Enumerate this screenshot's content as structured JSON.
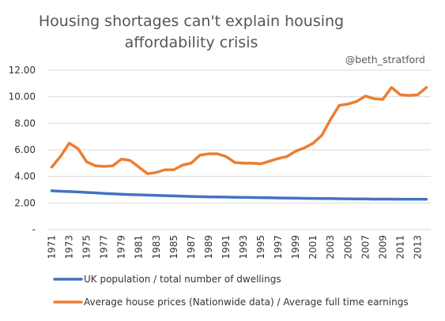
{
  "chart_data": {
    "type": "line",
    "title": "Housing shortages can't explain housing affordability crisis",
    "title_lines": [
      "Housing shortages can't explain housing",
      "affordability crisis"
    ],
    "annotation": "@beth_stratford",
    "ylim": [
      0,
      12
    ],
    "y_ticks": [
      "-",
      "2.00",
      "4.00",
      "6.00",
      "8.00",
      "10.00",
      "12.00"
    ],
    "x_ticks": [
      "1971",
      "1973",
      "1975",
      "1977",
      "1979",
      "1981",
      "1983",
      "1985",
      "1987",
      "1989",
      "1991",
      "1993",
      "1995",
      "1997",
      "1999",
      "2001",
      "2003",
      "2005",
      "2007",
      "2009",
      "2011",
      "2013"
    ],
    "x": [
      1971,
      1972,
      1973,
      1974,
      1975,
      1976,
      1977,
      1978,
      1979,
      1980,
      1981,
      1982,
      1983,
      1984,
      1985,
      1986,
      1987,
      1988,
      1989,
      1990,
      1991,
      1992,
      1993,
      1994,
      1995,
      1996,
      1997,
      1998,
      1999,
      2000,
      2001,
      2002,
      2003,
      2004,
      2005,
      2006,
      2007,
      2008,
      2009,
      2010,
      2011,
      2012,
      2013,
      2014
    ],
    "grid": true,
    "legend_position": "bottom",
    "series": [
      {
        "name": "UK population / total number of dwellings",
        "color": "#4472C4",
        "values": [
          2.92,
          2.88,
          2.86,
          2.83,
          2.79,
          2.76,
          2.72,
          2.69,
          2.66,
          2.63,
          2.61,
          2.59,
          2.57,
          2.55,
          2.53,
          2.51,
          2.49,
          2.47,
          2.46,
          2.45,
          2.44,
          2.43,
          2.42,
          2.41,
          2.4,
          2.39,
          2.38,
          2.37,
          2.36,
          2.35,
          2.34,
          2.33,
          2.33,
          2.32,
          2.31,
          2.3,
          2.3,
          2.29,
          2.29,
          2.29,
          2.28,
          2.28,
          2.28,
          2.28
        ]
      },
      {
        "name": "Average house prices (Nationwide data) / Average full time earnings",
        "color": "#ED7D31",
        "values": [
          4.7,
          5.5,
          6.5,
          6.1,
          5.1,
          4.8,
          4.75,
          4.8,
          5.3,
          5.2,
          4.7,
          4.2,
          4.3,
          4.5,
          4.5,
          4.85,
          5.0,
          5.6,
          5.7,
          5.7,
          5.5,
          5.05,
          5.0,
          5.0,
          4.95,
          5.15,
          5.35,
          5.5,
          5.9,
          6.15,
          6.5,
          7.1,
          8.3,
          9.35,
          9.45,
          9.65,
          10.05,
          9.85,
          9.8,
          10.7,
          10.15,
          10.1,
          10.15,
          10.7
        ]
      }
    ]
  }
}
